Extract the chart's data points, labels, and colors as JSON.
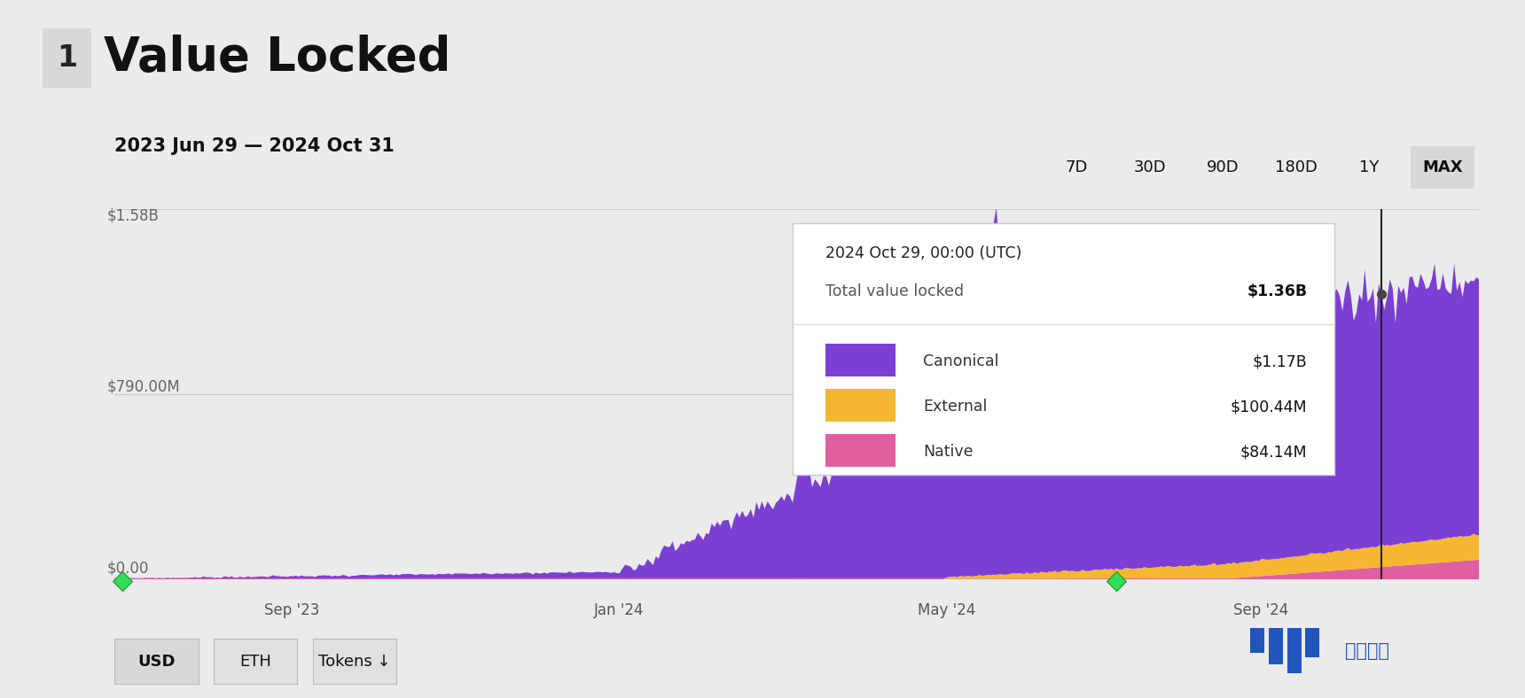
{
  "title_number": "1",
  "title_text": "Value Locked",
  "date_range": "2023 Jun 29 — 2024 Oct 31",
  "y_labels": [
    "$0.00",
    "$790.00M",
    "$1.58B"
  ],
  "y_values": [
    0,
    790000000,
    1580000000
  ],
  "x_tick_labels": [
    "Sep '23",
    "Jan '24",
    "May '24",
    "Sep '24"
  ],
  "x_tick_positions": [
    0.13,
    0.37,
    0.61,
    0.84
  ],
  "time_buttons": [
    "7D",
    "30D",
    "90D",
    "180D",
    "1Y",
    "MAX"
  ],
  "active_button": "MAX",
  "bg_color": "#ebebeb",
  "canonical_color": "#7B3FD4",
  "external_color": "#F5B731",
  "native_color": "#E05FA0",
  "tooltip_date": "2024 Oct 29, 00:00 (UTC)",
  "tooltip_total": "$1.36B",
  "tooltip_canonical": "$1.17B",
  "tooltip_external": "$100.44M",
  "tooltip_native": "$84.14M",
  "watermark_text": "区块周刊"
}
